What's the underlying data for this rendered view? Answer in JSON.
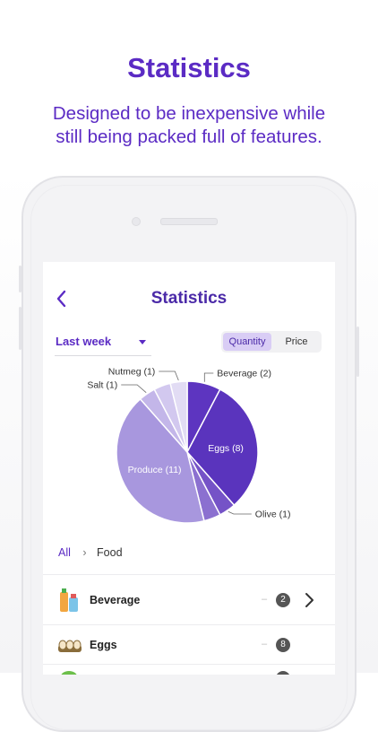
{
  "promo": {
    "title": "Statistics",
    "subtitle_line1": "Designed to be inexpensive while",
    "subtitle_line2": "still being packed full of features."
  },
  "screen": {
    "title": "Statistics",
    "period": "Last week",
    "toggle": {
      "quantity": "Quantity",
      "price": "Price",
      "selected": "Quantity"
    },
    "breadcrumb": {
      "root": "All",
      "current": "Food"
    }
  },
  "chart_data": {
    "type": "pie",
    "slices": [
      {
        "label": "Beverage (2)",
        "name": "Beverage",
        "value": 2,
        "color": "#5d35c0"
      },
      {
        "label": "Eggs (8)",
        "name": "Eggs",
        "value": 8,
        "color": "#5a34bd"
      },
      {
        "label": "Olive (1)",
        "name": "Olive",
        "value": 1,
        "color": "#7553c7"
      },
      {
        "label": "",
        "name": "",
        "value": 1,
        "color": "#8b70d0"
      },
      {
        "label": "Produce (11)",
        "name": "Produce",
        "value": 11,
        "color": "#a897de"
      },
      {
        "label": "Salt (1)",
        "name": "Salt",
        "value": 1,
        "color": "#c3b6e9"
      },
      {
        "label": "",
        "name": "",
        "value": 1,
        "color": "#d2c8ef"
      },
      {
        "label": "Nutmeg (1)",
        "name": "Nutmeg",
        "value": 1,
        "color": "#e2dcf4"
      }
    ]
  },
  "list": {
    "items": [
      {
        "label": "Beverage",
        "count": "2",
        "icon": "beverage-icon"
      },
      {
        "label": "Eggs",
        "count": "8",
        "icon": "eggs-icon"
      }
    ]
  },
  "colors": {
    "accent": "#5b2bc4",
    "title": "#4b2aa8"
  }
}
